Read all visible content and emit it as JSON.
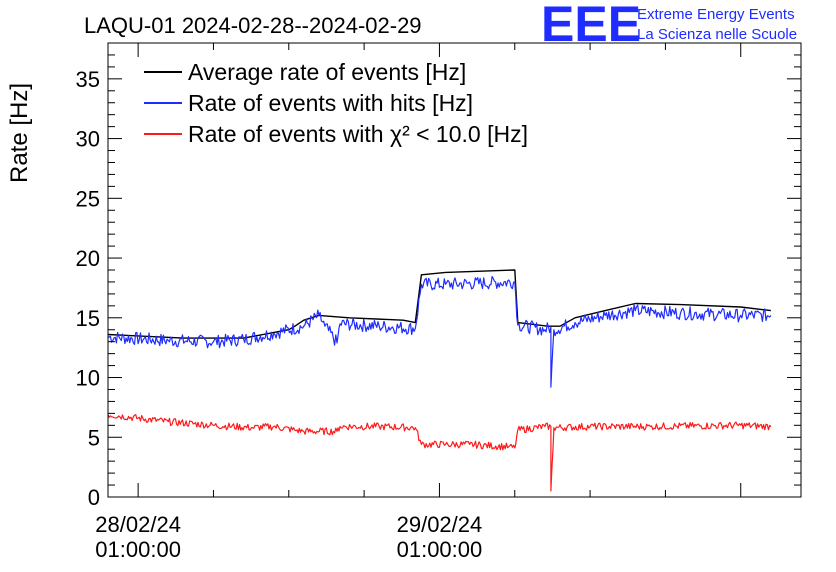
{
  "chart_data": {
    "type": "line",
    "title": "LAQU-01 2024-02-28--2024-02-29",
    "ylabel": "Rate [Hz]",
    "xlabel": "",
    "ylim": [
      0,
      38
    ],
    "yticks": [
      0,
      5,
      10,
      15,
      20,
      25,
      30,
      35
    ],
    "xlim": [
      -0.1,
      2.2
    ],
    "xticks": [
      {
        "x": 0,
        "date": "28/02/24",
        "time": "01:00:00"
      },
      {
        "x": 1,
        "date": "29/02/24",
        "time": "01:00:00"
      }
    ],
    "grid": false,
    "legend_position": "top-left",
    "series": [
      {
        "name": "Average rate of events [Hz]",
        "color": "#000000",
        "noise": 0,
        "points": [
          [
            -0.1,
            13.6
          ],
          [
            0.15,
            13.3
          ],
          [
            0.35,
            13.3
          ],
          [
            0.5,
            14.0
          ],
          [
            0.52,
            14.3
          ],
          [
            0.55,
            14.8
          ],
          [
            0.6,
            15.2
          ],
          [
            0.7,
            15.0
          ],
          [
            0.88,
            14.8
          ],
          [
            0.92,
            14.6
          ],
          [
            0.94,
            18.6
          ],
          [
            1.02,
            18.8
          ],
          [
            1.25,
            19.0
          ],
          [
            1.26,
            14.6
          ],
          [
            1.36,
            14.3
          ],
          [
            1.4,
            14.3
          ],
          [
            1.45,
            15.0
          ],
          [
            1.55,
            15.6
          ],
          [
            1.65,
            16.2
          ],
          [
            1.8,
            16.1
          ],
          [
            2.0,
            15.9
          ],
          [
            2.1,
            15.6
          ]
        ]
      },
      {
        "name": "Rate of events with hits [Hz]",
        "color": "#1f2cff",
        "noise": 0.55,
        "points": [
          [
            -0.1,
            13.4
          ],
          [
            0.1,
            13.1
          ],
          [
            0.25,
            13.0
          ],
          [
            0.35,
            13.2
          ],
          [
            0.45,
            13.7
          ],
          [
            0.55,
            14.3
          ],
          [
            0.6,
            15.2
          ],
          [
            0.62,
            14.3
          ],
          [
            0.66,
            12.9
          ],
          [
            0.67,
            14.5
          ],
          [
            0.8,
            14.3
          ],
          [
            0.92,
            14.1
          ],
          [
            0.94,
            17.8
          ],
          [
            1.02,
            17.8
          ],
          [
            1.25,
            18.0
          ],
          [
            1.26,
            14.4
          ],
          [
            1.35,
            14.0
          ],
          [
            1.37,
            14.2
          ],
          [
            1.37,
            9.2
          ],
          [
            1.38,
            14.0
          ],
          [
            1.45,
            14.6
          ],
          [
            1.55,
            15.2
          ],
          [
            1.65,
            15.6
          ],
          [
            1.8,
            15.4
          ],
          [
            2.0,
            15.2
          ],
          [
            2.1,
            15.2
          ]
        ]
      },
      {
        "name": "Rate of events with χ² < 10.0 [Hz]",
        "color": "#ff1a1a",
        "noise": 0.3,
        "points": [
          [
            -0.1,
            6.9
          ],
          [
            0.1,
            6.3
          ],
          [
            0.25,
            6.0
          ],
          [
            0.38,
            5.8
          ],
          [
            0.45,
            5.9
          ],
          [
            0.52,
            5.6
          ],
          [
            0.55,
            5.5
          ],
          [
            0.66,
            5.5
          ],
          [
            0.67,
            5.9
          ],
          [
            0.8,
            5.9
          ],
          [
            0.92,
            5.8
          ],
          [
            0.94,
            4.4
          ],
          [
            1.02,
            4.4
          ],
          [
            1.1,
            4.4
          ],
          [
            1.23,
            4.2
          ],
          [
            1.25,
            4.1
          ],
          [
            1.26,
            5.6
          ],
          [
            1.35,
            5.9
          ],
          [
            1.37,
            5.9
          ],
          [
            1.37,
            0.5
          ],
          [
            1.38,
            5.8
          ],
          [
            1.5,
            5.9
          ],
          [
            1.7,
            5.9
          ],
          [
            2.0,
            6.0
          ],
          [
            2.1,
            5.9
          ]
        ]
      }
    ]
  },
  "legend_entries": [
    "Average rate of events [Hz]",
    "Rate of events with hits [Hz]",
    "Rate of events with χ² < 10.0 [Hz]"
  ],
  "logo": {
    "mark": "EEE",
    "line1": "Extreme Energy Events",
    "line2": "La Scienza nelle Scuole",
    "color": "#1f2cff"
  }
}
